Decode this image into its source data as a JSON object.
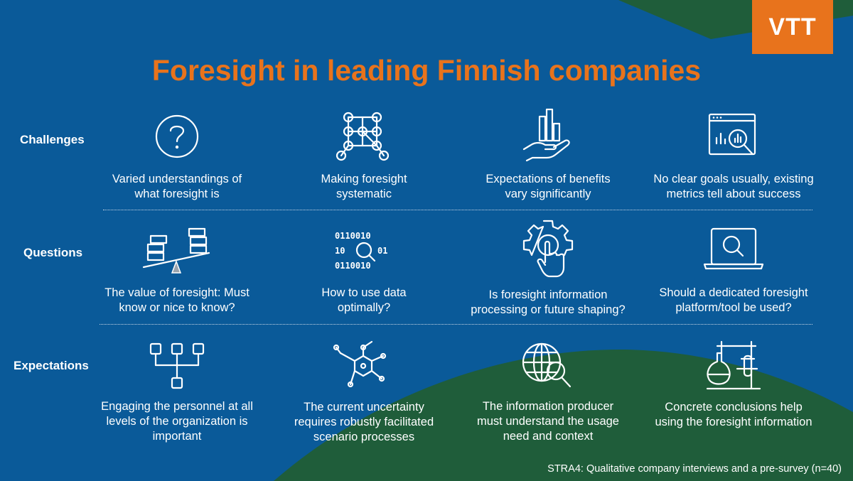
{
  "logo": "VTT",
  "title": "Foresight in leading Finnish companies",
  "colors": {
    "background": "#0a5a99",
    "green": "#1f5d3a",
    "accent": "#e8731c"
  },
  "rows": [
    {
      "label": "Challenges",
      "items": [
        {
          "icon": "question-icon",
          "text_lines": [
            "Varied understandings of",
            "what foresight is"
          ]
        },
        {
          "icon": "network-icon",
          "text_lines": [
            "Making foresight",
            "systematic"
          ]
        },
        {
          "icon": "hand-chart-icon",
          "text_lines": [
            "Expectations of benefits",
            "vary significantly"
          ]
        },
        {
          "icon": "analytics-window-icon",
          "text_lines": [
            "No clear goals usually, existing",
            "metrics tell about success"
          ]
        }
      ]
    },
    {
      "label": "Questions",
      "items": [
        {
          "icon": "balance-icon",
          "text_lines": [
            "The value of foresight: Must",
            "know or nice to know?"
          ]
        },
        {
          "icon": "binary-data-icon",
          "text_lines": [
            "How to use data",
            "optimally?"
          ]
        },
        {
          "icon": "gear-touch-icon",
          "text_lines": [
            "Is foresight information",
            "processing or future shaping?"
          ]
        },
        {
          "icon": "laptop-search-icon",
          "text_lines": [
            "Should a dedicated foresight",
            "platform/tool be used?"
          ]
        }
      ]
    },
    {
      "label": "Expectations",
      "items": [
        {
          "icon": "hierarchy-icon",
          "text_lines": [
            "Engaging the personnel at all",
            "levels of the organization is",
            "important"
          ]
        },
        {
          "icon": "molecule-icon",
          "text_lines": [
            "The current uncertainty",
            "requires robustly facilitated",
            "scenario processes"
          ]
        },
        {
          "icon": "globe-search-icon",
          "text_lines": [
            "The information producer",
            "must understand the usage",
            "need and context"
          ]
        },
        {
          "icon": "lab-flask-icon",
          "text_lines": [
            "Concrete conclusions help",
            "using the foresight information"
          ]
        }
      ]
    }
  ],
  "footer": "STRA4: Qualitative company interviews and a pre-survey (n=40)"
}
